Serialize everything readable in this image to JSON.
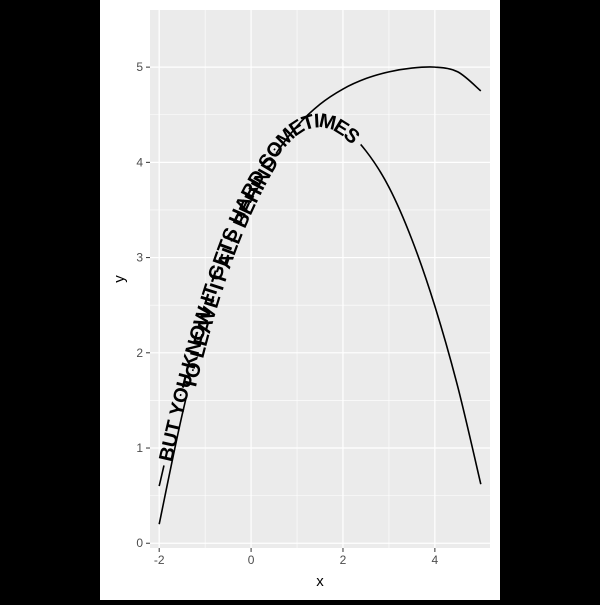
{
  "chart_data": {
    "type": "line",
    "title": "",
    "xlabel": "x",
    "ylabel": "y",
    "xlim": [
      -2.2,
      5.2
    ],
    "ylim": [
      -0.05,
      5.6
    ],
    "x_ticks": [
      -2,
      0,
      2,
      4
    ],
    "x_tick_labels": [
      "-2",
      "0",
      "2",
      "4"
    ],
    "y_ticks": [
      0,
      1,
      2,
      3,
      4,
      5
    ],
    "y_tick_labels": [
      "0",
      "1",
      "2",
      "3",
      "4",
      "5"
    ],
    "grid": true,
    "series": [
      {
        "label": "BUT YOU KNOW IT GETS HARD SOMETIMES",
        "function": "y = 0.6 + 2.2*(x+2) - 0.3143*(x+2)^2",
        "x": [
          -2,
          -1.5,
          -1,
          -0.5,
          0,
          0.5,
          1,
          1.5,
          2,
          2.5,
          3,
          3.5,
          4,
          4.5,
          5
        ],
        "y": [
          0.6,
          1.62,
          2.49,
          3.2,
          3.74,
          4.13,
          4.37,
          4.44,
          4.36,
          4.12,
          3.74,
          3.19,
          2.49,
          1.64,
          0.62
        ]
      },
      {
        "label": "TO LEAVE IT ALL BEHIND",
        "x": [
          -2,
          -1.5,
          -1,
          -0.5,
          0,
          0.5,
          1,
          1.5,
          2,
          2.5,
          3,
          3.5,
          4,
          4.5,
          5
        ],
        "y": [
          0.2,
          1.35,
          2.3,
          3.05,
          3.62,
          4.06,
          4.38,
          4.61,
          4.77,
          4.88,
          4.95,
          4.99,
          5.0,
          4.95,
          4.75
        ]
      }
    ]
  },
  "colors": {
    "page_background": "#000000",
    "plot_panel": "#ebebeb",
    "grid_major": "#ffffff",
    "figure_background": "#ffffff",
    "line": "#000000"
  }
}
